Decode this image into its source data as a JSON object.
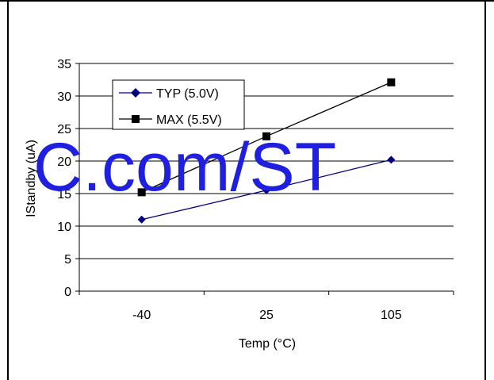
{
  "chart_data": {
    "type": "line",
    "categories": [
      "-40",
      "25",
      "105"
    ],
    "xlabel": "Temp (°C)",
    "ylabel": "IStandby (uA)",
    "ylim": [
      0,
      35
    ],
    "yticks": [
      0,
      5,
      10,
      15,
      20,
      25,
      30,
      35
    ],
    "grid": "horizontal",
    "legend": "top-left",
    "series": [
      {
        "name": "TYP (5.0V)",
        "values": [
          11,
          15.5,
          20.2
        ],
        "color": "#000080",
        "marker": "diamond"
      },
      {
        "name": "MAX (5.5V)",
        "values": [
          15.2,
          23.8,
          32.1
        ],
        "color": "#000000",
        "marker": "square"
      }
    ]
  },
  "watermark": "C.com/ST"
}
